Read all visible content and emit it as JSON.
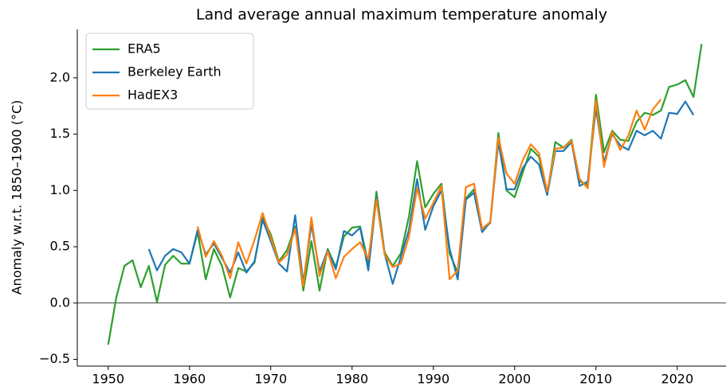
{
  "chart_data": {
    "type": "line",
    "title": "Land average annual maximum temperature anomaly",
    "y_label": "Anomaly w.r.t. 1850–1900 (°C)",
    "x": [
      1950,
      1951,
      1952,
      1953,
      1954,
      1955,
      1956,
      1957,
      1958,
      1959,
      1960,
      1961,
      1962,
      1963,
      1964,
      1965,
      1966,
      1967,
      1968,
      1969,
      1970,
      1971,
      1972,
      1973,
      1974,
      1975,
      1976,
      1977,
      1978,
      1979,
      1980,
      1981,
      1982,
      1983,
      1984,
      1985,
      1986,
      1987,
      1988,
      1989,
      1990,
      1991,
      1992,
      1993,
      1994,
      1995,
      1996,
      1997,
      1998,
      1999,
      2000,
      2001,
      2002,
      2003,
      2004,
      2005,
      2006,
      2007,
      2008,
      2009,
      2010,
      2011,
      2012,
      2013,
      2014,
      2015,
      2016,
      2017,
      2018,
      2019,
      2020,
      2021,
      2022,
      2023
    ],
    "series": [
      {
        "name": "ERA5",
        "color": "#2ca02c",
        "values": [
          -0.37,
          0.05,
          0.33,
          0.38,
          0.14,
          0.33,
          0.01,
          0.34,
          0.42,
          0.35,
          0.35,
          0.63,
          0.21,
          0.48,
          0.33,
          0.05,
          0.31,
          0.28,
          0.36,
          0.76,
          0.61,
          0.37,
          0.47,
          0.68,
          0.11,
          0.55,
          0.11,
          0.48,
          0.32,
          0.59,
          0.67,
          0.68,
          0.35,
          0.99,
          0.45,
          0.33,
          0.44,
          0.77,
          1.26,
          0.85,
          0.97,
          1.06,
          0.44,
          0.27,
          0.93,
          1.01,
          0.66,
          0.71,
          1.51,
          1.0,
          0.94,
          1.16,
          1.37,
          1.3,
          0.96,
          1.43,
          1.38,
          1.45,
          1.08,
          1.05,
          1.85,
          1.34,
          1.53,
          1.45,
          1.44,
          1.61,
          1.69,
          1.67,
          1.71,
          1.92,
          1.94,
          1.98,
          1.83,
          2.3
        ]
      },
      {
        "name": "Berkeley Earth",
        "color": "#1f77b4",
        "values": [
          null,
          null,
          null,
          null,
          null,
          0.48,
          0.29,
          0.42,
          0.48,
          0.45,
          0.35,
          0.65,
          0.43,
          0.53,
          0.4,
          0.27,
          0.45,
          0.27,
          0.37,
          0.74,
          0.55,
          0.35,
          0.28,
          0.78,
          0.18,
          0.7,
          0.28,
          0.47,
          0.3,
          0.64,
          0.6,
          0.67,
          0.29,
          0.94,
          0.44,
          0.17,
          0.41,
          0.65,
          1.1,
          0.65,
          0.86,
          1.0,
          0.48,
          0.21,
          0.92,
          0.98,
          0.63,
          0.72,
          1.43,
          1.01,
          1.01,
          1.2,
          1.3,
          1.23,
          0.96,
          1.35,
          1.35,
          1.43,
          1.04,
          1.08,
          1.73,
          1.25,
          1.5,
          1.4,
          1.36,
          1.53,
          1.49,
          1.53,
          1.46,
          1.69,
          1.68,
          1.79,
          1.67,
          null
        ]
      },
      {
        "name": "HadEX3",
        "color": "#ff7f0e",
        "values": [
          null,
          null,
          null,
          null,
          null,
          null,
          null,
          null,
          null,
          null,
          null,
          0.68,
          0.41,
          0.55,
          0.42,
          0.22,
          0.54,
          0.35,
          0.56,
          0.8,
          0.58,
          0.36,
          0.43,
          0.66,
          0.15,
          0.76,
          0.24,
          0.46,
          0.22,
          0.41,
          0.48,
          0.54,
          0.39,
          0.92,
          0.43,
          0.32,
          0.35,
          0.59,
          1.02,
          0.75,
          0.89,
          1.04,
          0.21,
          0.29,
          1.03,
          1.06,
          0.66,
          0.72,
          1.47,
          1.15,
          1.06,
          1.27,
          1.41,
          1.33,
          0.99,
          1.37,
          1.38,
          1.44,
          1.1,
          1.02,
          1.8,
          1.21,
          1.52,
          1.36,
          1.49,
          1.71,
          1.54,
          1.72,
          1.81,
          null,
          null,
          null,
          null,
          null
        ]
      }
    ],
    "xlim": [
      1946.2,
      2026
    ],
    "xticks": [
      1950,
      1960,
      1970,
      1980,
      1990,
      2000,
      2010,
      2020
    ],
    "ylim": [
      -0.56,
      2.43
    ],
    "yticks": [
      {
        "value": -0.5,
        "label": "−0.5"
      },
      {
        "value": 0,
        "label": "0.0"
      },
      0.5,
      {
        "value": 1,
        "label": "1.0"
      },
      1.5,
      {
        "value": 2,
        "label": "2.0"
      }
    ],
    "hline": 0,
    "legend": "upper left"
  }
}
